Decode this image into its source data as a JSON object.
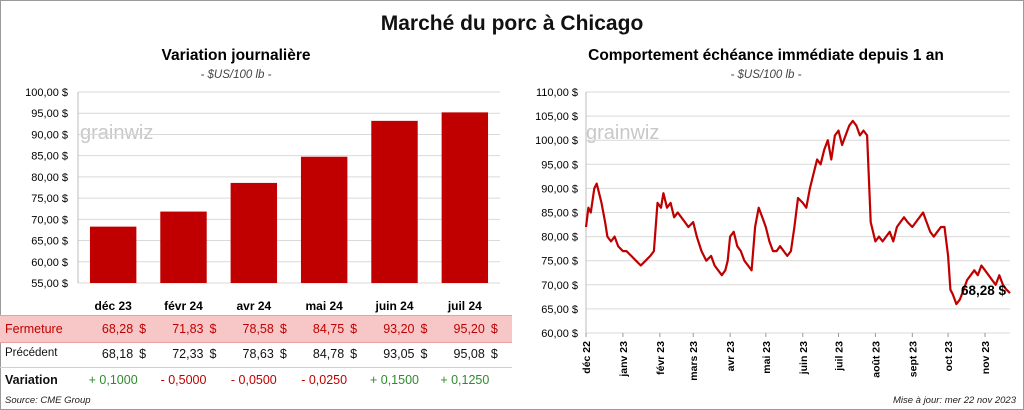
{
  "main_title": "Marché du porc à Chicago",
  "left_panel": {
    "title": "Variation journalière",
    "subtitle": "- $US/100 lb -",
    "watermark": "grainwiz"
  },
  "right_panel": {
    "title": "Comportement échéance immédiate depuis 1 an",
    "subtitle": "- $US/100 lb -",
    "watermark": "grainwiz",
    "last_value_label": "68,28 $"
  },
  "table": {
    "rows": [
      {
        "label": "Fermeture",
        "cells": [
          "68,28",
          "71,83",
          "78,58",
          "84,75",
          "93,20",
          "95,20"
        ],
        "unit": "$"
      },
      {
        "label": "Précédent",
        "cells": [
          "68,18",
          "72,33",
          "78,63",
          "84,78",
          "93,05",
          "95,08"
        ],
        "unit": "$"
      },
      {
        "label": "Variation",
        "cells": [
          "+ 0,1000",
          "- 0,5000",
          "- 0,0500",
          "- 0,0250",
          "+ 0,1500",
          "+ 0,1250"
        ]
      }
    ]
  },
  "footer": {
    "source": "Source: CME Group",
    "updated": "Mise à jour: mer 22 nov 2023"
  },
  "colors": {
    "bar": "#c00000",
    "line": "#c00000",
    "highlight_row": "#f7c7c7",
    "positive": "#2e8b2e",
    "negative": "#c00000",
    "grid": "#d9d9d9"
  },
  "chart_data": [
    {
      "type": "bar",
      "title": "Variation journalière",
      "subtitle": "- $US/100 lb -",
      "categories": [
        "déc 23",
        "févr 24",
        "avr 24",
        "mai 24",
        "juin 24",
        "juil 24"
      ],
      "values": [
        68.28,
        71.83,
        78.58,
        84.75,
        93.2,
        95.2
      ],
      "ylim": [
        55,
        100
      ],
      "yticks": [
        55,
        60,
        65,
        70,
        75,
        80,
        85,
        90,
        95,
        100
      ],
      "ytick_labels": [
        "55,00 $",
        "60,00 $",
        "65,00 $",
        "70,00 $",
        "75,00 $",
        "80,00 $",
        "85,00 $",
        "90,00 $",
        "95,00 $",
        "100,00 $"
      ],
      "grid": "horizontal"
    },
    {
      "type": "line",
      "title": "Comportement échéance immédiate depuis 1 an",
      "subtitle": "- $US/100 lb -",
      "xlim": [
        "2022-12-01",
        "2023-11-22"
      ],
      "xtick_dates": [
        "2022-12-01",
        "2023-01-01",
        "2023-02-01",
        "2023-03-01",
        "2023-04-01",
        "2023-05-01",
        "2023-06-01",
        "2023-07-01",
        "2023-08-01",
        "2023-09-01",
        "2023-10-01",
        "2023-11-01"
      ],
      "xtick_labels": [
        "déc 22",
        "janv 23",
        "févr 23",
        "mars 23",
        "avr 23",
        "mai 23",
        "juin 23",
        "juil 23",
        "août 23",
        "sept 23",
        "oct 23",
        "nov 23"
      ],
      "ylim": [
        60,
        110
      ],
      "yticks": [
        60,
        65,
        70,
        75,
        80,
        85,
        90,
        95,
        100,
        105,
        110
      ],
      "ytick_labels": [
        "60,00 $",
        "65,00 $",
        "70,00 $",
        "75,00 $",
        "80,00 $",
        "85,00 $",
        "90,00 $",
        "95,00 $",
        "100,00 $",
        "105,00 $",
        "110,00 $"
      ],
      "grid": "horizontal",
      "annotation": "68,28 $",
      "series": [
        {
          "x": [
            "2022-12-01",
            "2022-12-03",
            "2022-12-05",
            "2022-12-08",
            "2022-12-10",
            "2022-12-12",
            "2022-12-14",
            "2022-12-17",
            "2022-12-19",
            "2022-12-22",
            "2022-12-25",
            "2022-12-28",
            "2023-01-01",
            "2023-01-04",
            "2023-01-08",
            "2023-01-12",
            "2023-01-16",
            "2023-01-20",
            "2023-01-24",
            "2023-01-27",
            "2023-01-30",
            "2023-02-02",
            "2023-02-04",
            "2023-02-07",
            "2023-02-10",
            "2023-02-13",
            "2023-02-16",
            "2023-02-19",
            "2023-02-22",
            "2023-02-25",
            "2023-03-01",
            "2023-03-04",
            "2023-03-08",
            "2023-03-12",
            "2023-03-16",
            "2023-03-19",
            "2023-03-22",
            "2023-03-25",
            "2023-03-28",
            "2023-03-30",
            "2023-04-01",
            "2023-04-04",
            "2023-04-07",
            "2023-04-10",
            "2023-04-13",
            "2023-04-16",
            "2023-04-19",
            "2023-04-22",
            "2023-04-25",
            "2023-04-28",
            "2023-05-01",
            "2023-05-04",
            "2023-05-07",
            "2023-05-10",
            "2023-05-13",
            "2023-05-16",
            "2023-05-19",
            "2023-05-22",
            "2023-05-25",
            "2023-05-28",
            "2023-06-01",
            "2023-06-04",
            "2023-06-07",
            "2023-06-10",
            "2023-06-13",
            "2023-06-16",
            "2023-06-19",
            "2023-06-22",
            "2023-06-25",
            "2023-06-28",
            "2023-07-01",
            "2023-07-04",
            "2023-07-07",
            "2023-07-10",
            "2023-07-13",
            "2023-07-16",
            "2023-07-19",
            "2023-07-22",
            "2023-07-25",
            "2023-07-28",
            "2023-07-31",
            "2023-08-01",
            "2023-08-04",
            "2023-08-07",
            "2023-08-10",
            "2023-08-13",
            "2023-08-16",
            "2023-08-19",
            "2023-08-22",
            "2023-08-25",
            "2023-08-28",
            "2023-09-01",
            "2023-09-04",
            "2023-09-07",
            "2023-09-10",
            "2023-09-13",
            "2023-09-16",
            "2023-09-19",
            "2023-09-22",
            "2023-09-25",
            "2023-09-28",
            "2023-10-01",
            "2023-10-03",
            "2023-10-05",
            "2023-10-08",
            "2023-10-11",
            "2023-10-14",
            "2023-10-17",
            "2023-10-20",
            "2023-10-23",
            "2023-10-26",
            "2023-10-29",
            "2023-11-01",
            "2023-11-04",
            "2023-11-07",
            "2023-11-10",
            "2023-11-13",
            "2023-11-16",
            "2023-11-19",
            "2023-11-22"
          ],
          "values": [
            82,
            86,
            85,
            90,
            91,
            89,
            87,
            83,
            80,
            79,
            80,
            78,
            77,
            77,
            76,
            75,
            74,
            75,
            76,
            77,
            87,
            86,
            89,
            86,
            87,
            84,
            85,
            84,
            83,
            82,
            83,
            80,
            77,
            75,
            76,
            74,
            73,
            72,
            73,
            75,
            80,
            81,
            78,
            77,
            75,
            74,
            73,
            82,
            86,
            84,
            82,
            79,
            77,
            77,
            78,
            77,
            76,
            77,
            82,
            88,
            87,
            86,
            90,
            93,
            96,
            95,
            98,
            100,
            96,
            101,
            102,
            99,
            101,
            103,
            104,
            103,
            101,
            102,
            101,
            83,
            80,
            79,
            80,
            79,
            80,
            81,
            79,
            82,
            83,
            84,
            83,
            82,
            83,
            84,
            85,
            83,
            81,
            80,
            81,
            82,
            82,
            76,
            69,
            68,
            66,
            67,
            69,
            71,
            72,
            73,
            72,
            74,
            73,
            72,
            71,
            70,
            72,
            70,
            69,
            68.28
          ]
        }
      ]
    }
  ]
}
